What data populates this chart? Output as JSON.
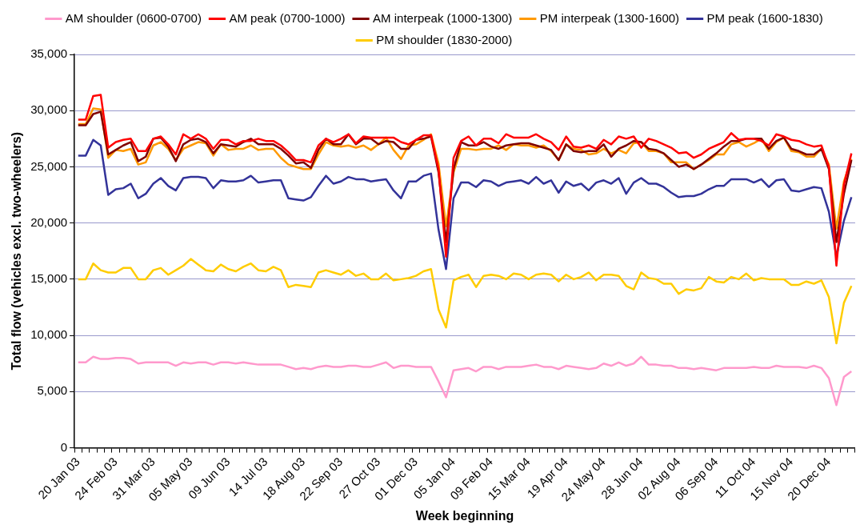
{
  "chart_data": {
    "type": "line",
    "xlabel": "Week beginning",
    "ylabel": "Total flow (vehicles excl. two-wheelers)",
    "categories": [
      "20 Jan 03",
      null,
      null,
      null,
      null,
      "24 Feb 03",
      null,
      null,
      null,
      null,
      "31 Mar 03",
      null,
      null,
      null,
      null,
      "05 May 03",
      null,
      null,
      null,
      null,
      "09 Jun 03",
      null,
      null,
      null,
      null,
      "14 Jul 03",
      null,
      null,
      null,
      null,
      "18 Aug 03",
      null,
      null,
      null,
      null,
      "22 Sep 03",
      null,
      null,
      null,
      null,
      "27 Oct 03",
      null,
      null,
      null,
      null,
      "01 Dec 03",
      null,
      null,
      null,
      null,
      "05 Jan 04",
      null,
      null,
      null,
      null,
      "09 Feb 04",
      null,
      null,
      null,
      null,
      "15 Mar 04",
      null,
      null,
      null,
      null,
      "19 Apr 04",
      null,
      null,
      null,
      null,
      "24 May 04",
      null,
      null,
      null,
      null,
      "28 Jun 04",
      null,
      null,
      null,
      null,
      "02 Aug 04",
      null,
      null,
      null,
      null,
      "06 Sep 04",
      null,
      null,
      null,
      null,
      "11 Oct 04",
      null,
      null,
      null,
      null,
      "15 Nov 04",
      null,
      null,
      null,
      null,
      "20 Dec 04",
      null,
      null,
      null
    ],
    "ylim": [
      0,
      35000
    ],
    "yticks": [
      {
        "value": 0,
        "label": "0"
      },
      {
        "value": 5000,
        "label": "5,000"
      },
      {
        "value": 10000,
        "label": "10,000"
      },
      {
        "value": 15000,
        "label": "15,000"
      },
      {
        "value": 20000,
        "label": "20,000"
      },
      {
        "value": 25000,
        "label": "25,000"
      },
      {
        "value": 30000,
        "label": "30,000"
      },
      {
        "value": 35000,
        "label": "35,000"
      }
    ],
    "grid": "y",
    "legend": "top",
    "marker": "none",
    "line_style": "solid",
    "series": [
      {
        "name": "AM shoulder (0600-0700)",
        "color": "#ff99cc",
        "values": [
          7600,
          7600,
          8100,
          7900,
          7900,
          8000,
          8000,
          7900,
          7500,
          7600,
          7600,
          7600,
          7600,
          7300,
          7600,
          7500,
          7600,
          7600,
          7400,
          7600,
          7600,
          7500,
          7600,
          7500,
          7400,
          7400,
          7400,
          7400,
          7200,
          7000,
          7100,
          7000,
          7200,
          7300,
          7200,
          7200,
          7300,
          7300,
          7200,
          7200,
          7400,
          7600,
          7100,
          7300,
          7300,
          7200,
          7200,
          7200,
          5900,
          4500,
          6900,
          7000,
          7100,
          6800,
          7200,
          7200,
          7000,
          7200,
          7200,
          7200,
          7300,
          7400,
          7200,
          7200,
          7000,
          7300,
          7200,
          7100,
          7000,
          7100,
          7500,
          7300,
          7600,
          7300,
          7500,
          8100,
          7400,
          7400,
          7300,
          7300,
          7100,
          7100,
          7000,
          7100,
          7000,
          6900,
          7100,
          7100,
          7100,
          7100,
          7200,
          7100,
          7100,
          7300,
          7200,
          7200,
          7200,
          7100,
          7300,
          7100,
          6200,
          3800,
          6300,
          6800
        ]
      },
      {
        "name": "AM peak (0700-1000)",
        "color": "#ff0000",
        "values": [
          29200,
          29200,
          31300,
          31400,
          26700,
          27200,
          27400,
          27500,
          26400,
          26400,
          27500,
          27700,
          27000,
          26100,
          27900,
          27500,
          27900,
          27500,
          26600,
          27400,
          27400,
          27000,
          27300,
          27300,
          27500,
          27300,
          27300,
          26900,
          26300,
          25600,
          25600,
          25400,
          26900,
          27500,
          27200,
          27500,
          27900,
          27100,
          27700,
          27600,
          27600,
          27600,
          27600,
          27200,
          27000,
          27400,
          27800,
          27800,
          24800,
          17000,
          25800,
          27300,
          27700,
          26900,
          27500,
          27500,
          27100,
          27900,
          27600,
          27600,
          27600,
          27900,
          27500,
          27200,
          26500,
          27700,
          26800,
          26700,
          26900,
          26600,
          27400,
          27000,
          27700,
          27500,
          27700,
          26700,
          27500,
          27300,
          27000,
          26700,
          26200,
          26300,
          25800,
          26100,
          26600,
          26900,
          27200,
          28000,
          27400,
          27500,
          27500,
          27300,
          26900,
          27900,
          27700,
          27400,
          27300,
          27000,
          26800,
          26900,
          25000,
          16200,
          23400,
          26200
        ]
      },
      {
        "name": "AM interpeak (1000-1300)",
        "color": "#800000",
        "values": [
          28700,
          28700,
          29700,
          29900,
          26100,
          26500,
          26900,
          27200,
          25500,
          25900,
          27500,
          27600,
          26800,
          25500,
          27000,
          27400,
          27500,
          27200,
          26200,
          27000,
          26900,
          26800,
          27200,
          27500,
          27000,
          27000,
          27000,
          26600,
          26000,
          25300,
          25400,
          24900,
          26500,
          27500,
          27000,
          27000,
          27900,
          27000,
          27500,
          27500,
          27000,
          27300,
          27200,
          26600,
          26600,
          27400,
          27500,
          27700,
          24500,
          18300,
          24800,
          27200,
          26900,
          26900,
          27200,
          26800,
          26600,
          26900,
          27000,
          27100,
          27100,
          26900,
          26700,
          26500,
          25600,
          27000,
          26400,
          26300,
          26400,
          26400,
          27000,
          25900,
          26600,
          26900,
          27300,
          27200,
          26600,
          26500,
          26200,
          25600,
          25000,
          25200,
          24800,
          25200,
          25700,
          26200,
          26800,
          27300,
          27300,
          27500,
          27500,
          27500,
          26600,
          27300,
          27600,
          26600,
          26400,
          26100,
          26100,
          26600,
          24800,
          18300,
          22600,
          25600
        ]
      },
      {
        "name": "PM interpeak (1300-1600)",
        "color": "#ff9900",
        "values": [
          28800,
          28800,
          30200,
          30100,
          25800,
          26500,
          26400,
          26600,
          25200,
          25400,
          26900,
          27200,
          26600,
          25600,
          26600,
          26900,
          27200,
          27100,
          26000,
          27000,
          26500,
          26600,
          26600,
          26900,
          26500,
          26600,
          26600,
          25800,
          25200,
          25000,
          24800,
          24800,
          26100,
          27200,
          26900,
          26800,
          26900,
          26700,
          26900,
          26500,
          27000,
          27600,
          26500,
          25700,
          26900,
          27000,
          27400,
          27900,
          25300,
          19700,
          24500,
          26600,
          26600,
          26500,
          26600,
          26600,
          26900,
          26500,
          27000,
          26900,
          26900,
          26700,
          26900,
          26400,
          25600,
          27000,
          26600,
          26500,
          26100,
          26200,
          26600,
          26200,
          26500,
          26200,
          27100,
          27200,
          26400,
          26400,
          26200,
          25400,
          25400,
          25400,
          24800,
          25200,
          25600,
          26100,
          26100,
          27000,
          27200,
          26800,
          27100,
          27500,
          26400,
          27200,
          27600,
          26400,
          26300,
          25900,
          25900,
          26600,
          25200,
          19500,
          23700,
          25700
        ]
      },
      {
        "name": "PM peak (1600-1830)",
        "color": "#333399",
        "values": [
          26000,
          26000,
          27400,
          26900,
          22500,
          23000,
          23100,
          23500,
          22200,
          22600,
          23500,
          24000,
          23300,
          22900,
          24000,
          24100,
          24100,
          24000,
          23100,
          23800,
          23700,
          23700,
          23800,
          24200,
          23600,
          23700,
          23800,
          23800,
          22200,
          22100,
          22000,
          22300,
          23300,
          24200,
          23500,
          23700,
          24100,
          23900,
          23900,
          23700,
          23800,
          23900,
          22900,
          22200,
          23700,
          23700,
          24200,
          24400,
          19400,
          15900,
          22200,
          23600,
          23600,
          23200,
          23800,
          23700,
          23300,
          23600,
          23700,
          23800,
          23500,
          24100,
          23500,
          23800,
          22700,
          23700,
          23300,
          23500,
          22900,
          23600,
          23800,
          23500,
          24000,
          22600,
          23600,
          24000,
          23500,
          23500,
          23200,
          22700,
          22300,
          22400,
          22400,
          22600,
          23000,
          23300,
          23300,
          23900,
          23900,
          23900,
          23600,
          23900,
          23200,
          23800,
          23900,
          22900,
          22800,
          23000,
          23200,
          23100,
          21000,
          17000,
          20200,
          22300
        ]
      },
      {
        "name": "PM shoulder (1830-2000)",
        "color": "#ffcc00",
        "values": [
          15000,
          15000,
          16400,
          15800,
          15600,
          15600,
          16000,
          16000,
          15000,
          15000,
          15800,
          16000,
          15400,
          15800,
          16200,
          16800,
          16300,
          15800,
          15700,
          16300,
          15900,
          15700,
          16100,
          16400,
          15800,
          15700,
          16100,
          15800,
          14300,
          14500,
          14400,
          14300,
          15600,
          15800,
          15600,
          15400,
          15800,
          15300,
          15500,
          15000,
          15000,
          15500,
          14900,
          15000,
          15100,
          15300,
          15700,
          15900,
          12300,
          10700,
          14900,
          15200,
          15400,
          14300,
          15300,
          15400,
          15300,
          15000,
          15500,
          15400,
          15000,
          15400,
          15500,
          15400,
          14800,
          15400,
          15000,
          15200,
          15600,
          14900,
          15400,
          15400,
          15300,
          14400,
          14100,
          15600,
          15100,
          15000,
          14600,
          14600,
          13700,
          14100,
          14000,
          14200,
          15200,
          14800,
          14700,
          15200,
          15000,
          15500,
          14900,
          15100,
          15000,
          15000,
          15000,
          14500,
          14500,
          14800,
          14600,
          14900,
          13400,
          9300,
          12900,
          14400
        ]
      }
    ]
  }
}
